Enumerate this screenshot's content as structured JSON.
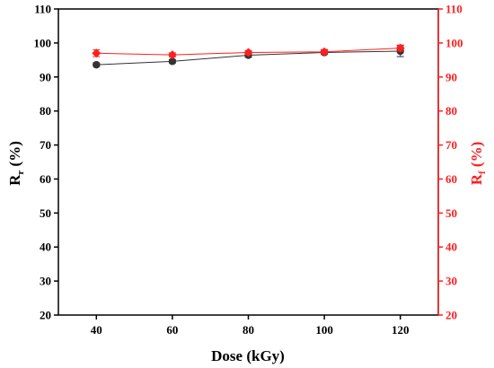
{
  "chart_data": {
    "type": "line",
    "xlabel": "Dose (kGy)",
    "ylabel_left": {
      "main": "R",
      "sub": "r",
      "suffix": " (%)"
    },
    "ylabel_right": {
      "main": "R",
      "sub": "f",
      "suffix": " (%)"
    },
    "xlim": [
      30,
      130
    ],
    "ylim": [
      20,
      110
    ],
    "x_ticks": [
      40,
      60,
      80,
      100,
      120
    ],
    "y_ticks": [
      20,
      30,
      40,
      50,
      60,
      70,
      80,
      90,
      100,
      110
    ],
    "grid": false,
    "legend": "none",
    "series": [
      {
        "axis": "left",
        "color": "#333333",
        "marker": "circle",
        "x": [
          40,
          60,
          80,
          100,
          120
        ],
        "y": [
          93.6,
          94.6,
          96.4,
          97.2,
          97.6
        ],
        "error": [
          0.5,
          0.5,
          0.6,
          0.6,
          1.6
        ]
      },
      {
        "axis": "right",
        "color": "#ff1f1f",
        "marker": "diamond",
        "x": [
          40,
          60,
          80,
          100,
          120
        ],
        "y": [
          97.0,
          96.5,
          97.2,
          97.4,
          98.5
        ],
        "error": [
          1.0,
          0.6,
          0.6,
          0.7,
          0.9
        ]
      }
    ],
    "colors": {
      "left_axis": "#000000",
      "right_axis": "#ff1f1f"
    }
  }
}
